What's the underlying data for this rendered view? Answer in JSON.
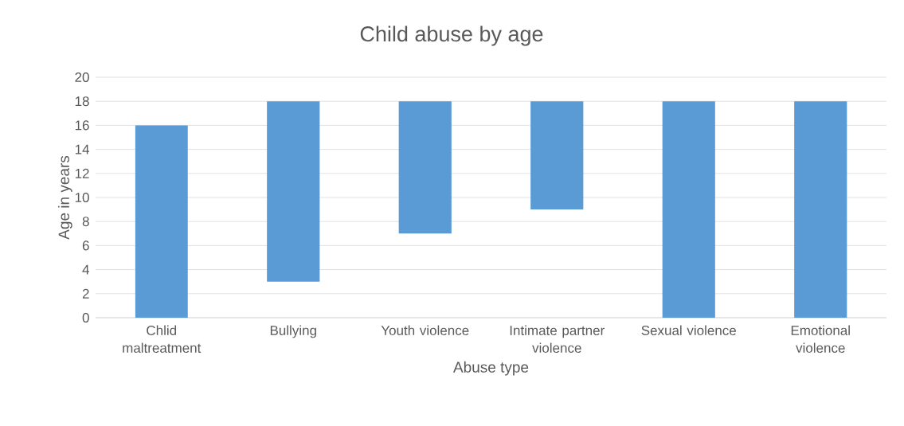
{
  "chart_data": {
    "type": "bar",
    "title": "Child abuse by age",
    "xlabel": "Abuse type",
    "ylabel": "Age in years",
    "categories": [
      "Chlid maltreatment",
      "Bullying",
      "Youth violence",
      "Intimate partner violence",
      "Sexual violence",
      "Emotional violence"
    ],
    "base": [
      0,
      3,
      7,
      9,
      0,
      0
    ],
    "values": [
      16,
      15,
      11,
      9,
      18,
      18
    ],
    "color": "#5b9bd5",
    "ylim": [
      0,
      20
    ],
    "yticks": [
      0,
      2,
      4,
      6,
      8,
      10,
      12,
      14,
      16,
      18,
      20
    ],
    "grid": "y"
  }
}
